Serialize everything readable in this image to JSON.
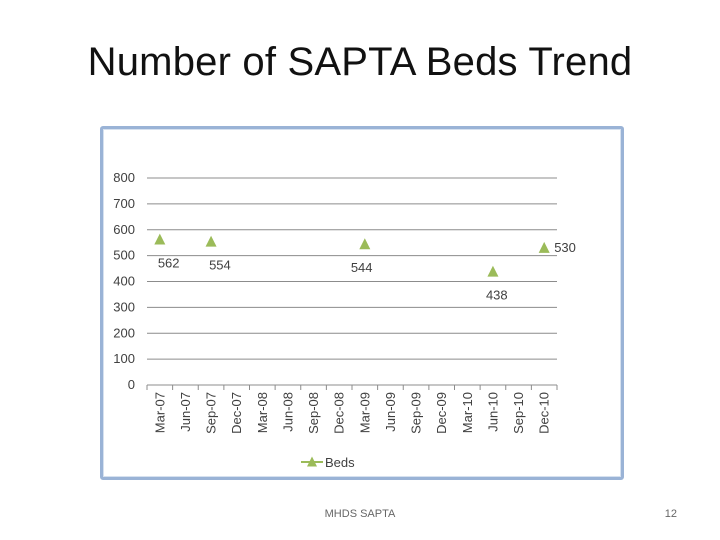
{
  "slide": {
    "title": "Number of SAPTA Beds Trend",
    "footer_text": "MHDS SAPTA",
    "page_number": "12"
  },
  "chart_data": {
    "type": "scatter",
    "title": "",
    "xlabel": "",
    "ylabel": "",
    "categories": [
      "Mar-07",
      "Jun-07",
      "Sep-07",
      "Dec-07",
      "Mar-08",
      "Jun-08",
      "Sep-08",
      "Dec-08",
      "Mar-09",
      "Jun-09",
      "Sep-09",
      "Dec-09",
      "Mar-10",
      "Jun-10",
      "Sep-10",
      "Dec-10"
    ],
    "ylim": [
      0,
      800
    ],
    "yticks": [
      "0",
      "100",
      "200",
      "300",
      "400",
      "500",
      "600",
      "700",
      "800"
    ],
    "grid": true,
    "legend_position": "bottom",
    "marker": "triangle",
    "marker_color": "#9bbb59",
    "series": [
      {
        "name": "Beds",
        "points": [
          {
            "x": "Mar-07",
            "y": 562,
            "label": "562"
          },
          {
            "x": "Sep-07",
            "y": 554,
            "label": "554"
          },
          {
            "x": "Mar-09",
            "y": 544,
            "label": "544"
          },
          {
            "x": "Jun-10",
            "y": 438,
            "label": "438"
          },
          {
            "x": "Dec-10",
            "y": 530,
            "label": "530"
          }
        ]
      }
    ]
  }
}
